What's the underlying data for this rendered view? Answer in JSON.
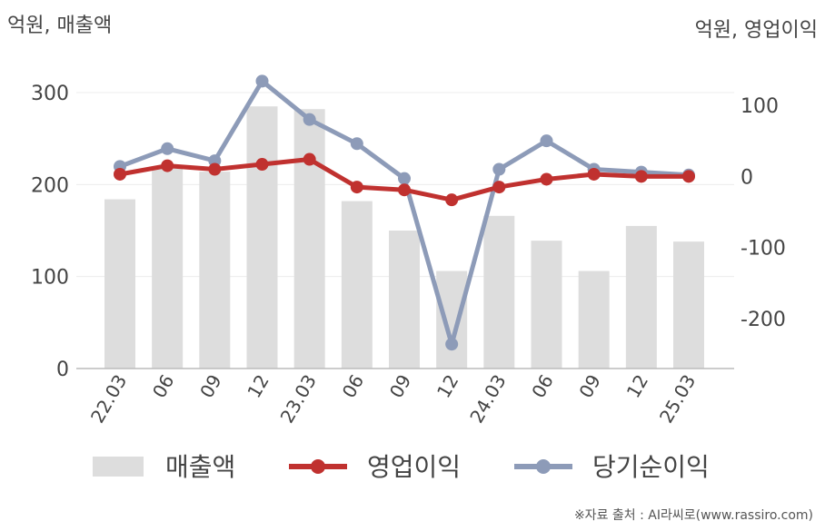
{
  "chart_data": {
    "type": "bar+line",
    "left_axis_label": "억원, 매출액",
    "right_axis_label": "억원, 영업이익",
    "categories": [
      "22.03",
      "06",
      "09",
      "12",
      "23.03",
      "06",
      "09",
      "12",
      "24.03",
      "06",
      "09",
      "12",
      "25.03"
    ],
    "bar_series": {
      "name": "매출액",
      "axis": "left",
      "color": "#dddddd",
      "values": [
        184,
        218,
        214,
        285,
        282,
        182,
        150,
        106,
        166,
        139,
        106,
        155,
        138
      ]
    },
    "line_series": [
      {
        "name": "영업이익",
        "axis": "right",
        "color": "#c0312f",
        "values": [
          3,
          15,
          10,
          17,
          24,
          -15,
          -19,
          -33,
          -15,
          -4,
          3,
          0,
          0
        ]
      },
      {
        "name": "당기순이익",
        "axis": "right",
        "color": "#8d9bb8",
        "values": [
          14,
          39,
          22,
          134,
          80,
          46,
          -3,
          -236,
          10,
          50,
          10,
          6,
          2
        ]
      }
    ],
    "left_ylim": [
      0,
      300
    ],
    "left_ticks": [
      "0",
      "100",
      "200",
      "300"
    ],
    "right_ylim": [
      -200,
      100
    ],
    "right_ticks": [
      "-200",
      "-100",
      "0",
      "100"
    ],
    "grid": true,
    "legend_position": "bottom",
    "source_text": "※자료 출처 : AI라씨로(www.rassiro.com)"
  }
}
